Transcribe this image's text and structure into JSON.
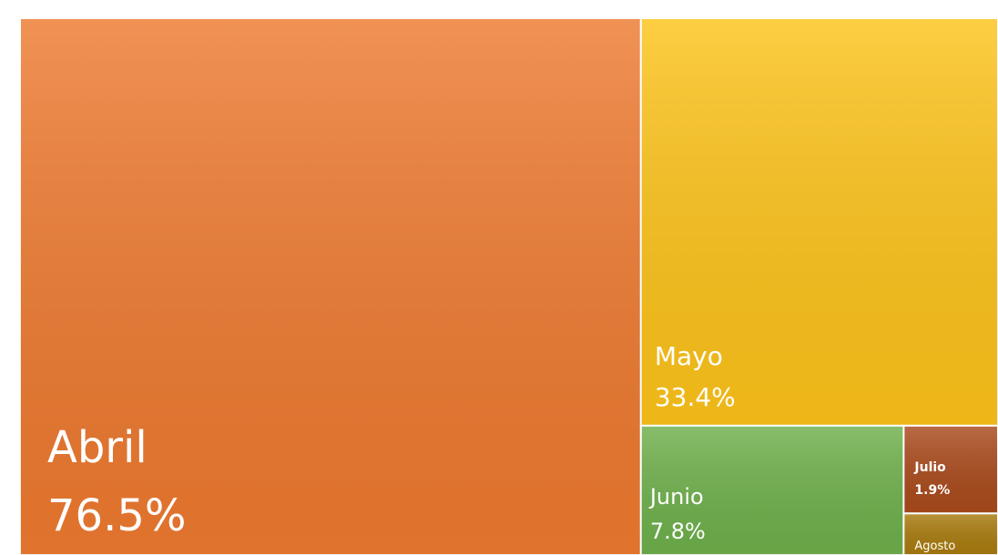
{
  "chart_data": {
    "type": "treemap",
    "categories": [
      "Abril",
      "Mayo",
      "Junio",
      "Julio",
      "Agosto"
    ],
    "values": [
      76.5,
      33.4,
      7.8,
      1.9,
      0.9
    ],
    "value_labels": [
      "76.5%",
      "33.4%",
      "7.8%",
      "1.9%",
      null
    ],
    "colors": [
      "#ee7a30",
      "#fdc31a",
      "#6eb04b",
      "#aa4a1c",
      "#a97b0e"
    ]
  }
}
